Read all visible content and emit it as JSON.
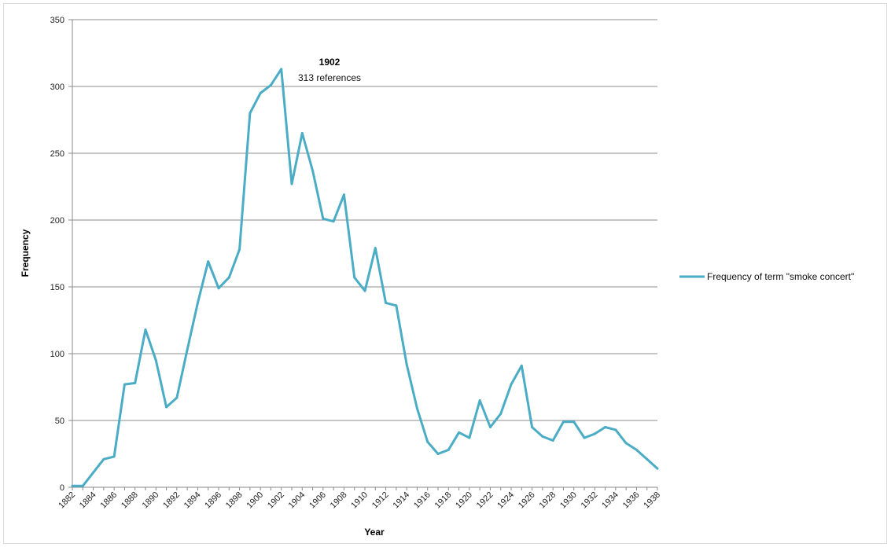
{
  "chart_data": {
    "type": "line",
    "xlabel": "Year",
    "ylabel": "Frequency",
    "ylim": [
      0,
      350
    ],
    "y_ticks": [
      0,
      50,
      100,
      150,
      200,
      250,
      300,
      350
    ],
    "x_tick_labels": [
      "1882",
      "1884",
      "1886",
      "1888",
      "1890",
      "1892",
      "1894",
      "1896",
      "1898",
      "1900",
      "1902",
      "1904",
      "1906",
      "1908",
      "1910",
      "1912",
      "1914",
      "1916",
      "1918",
      "1920",
      "1922",
      "1924",
      "1926",
      "1928",
      "1930",
      "1932",
      "1934",
      "1936",
      "1938"
    ],
    "grid": "horizontal",
    "legend_position": "right",
    "series_color": "#4aacc5",
    "series": [
      {
        "name": "Frequency of term \"smoke concert\"",
        "x": [
          1882,
          1883,
          1884,
          1885,
          1886,
          1887,
          1888,
          1889,
          1890,
          1891,
          1892,
          1893,
          1894,
          1895,
          1896,
          1897,
          1898,
          1899,
          1900,
          1901,
          1902,
          1903,
          1904,
          1905,
          1906,
          1907,
          1908,
          1909,
          1910,
          1911,
          1912,
          1913,
          1914,
          1915,
          1916,
          1917,
          1918,
          1919,
          1920,
          1921,
          1922,
          1923,
          1924,
          1925,
          1926,
          1927,
          1928,
          1929,
          1930,
          1931,
          1932,
          1933,
          1934,
          1935,
          1936,
          1937,
          1938
        ],
        "values": [
          1,
          1,
          11,
          21,
          23,
          77,
          78,
          118,
          95,
          60,
          67,
          103,
          138,
          169,
          149,
          157,
          178,
          280,
          295,
          301,
          313,
          227,
          265,
          237,
          201,
          199,
          219,
          157,
          147,
          179,
          138,
          136,
          92,
          59,
          34,
          25,
          28,
          41,
          37,
          65,
          45,
          55,
          77,
          91,
          45,
          38,
          35,
          49,
          49,
          37,
          40,
          45,
          43,
          33,
          28,
          21,
          14
        ]
      }
    ],
    "annotation": {
      "year_label": "1902",
      "text": "313 references"
    }
  }
}
